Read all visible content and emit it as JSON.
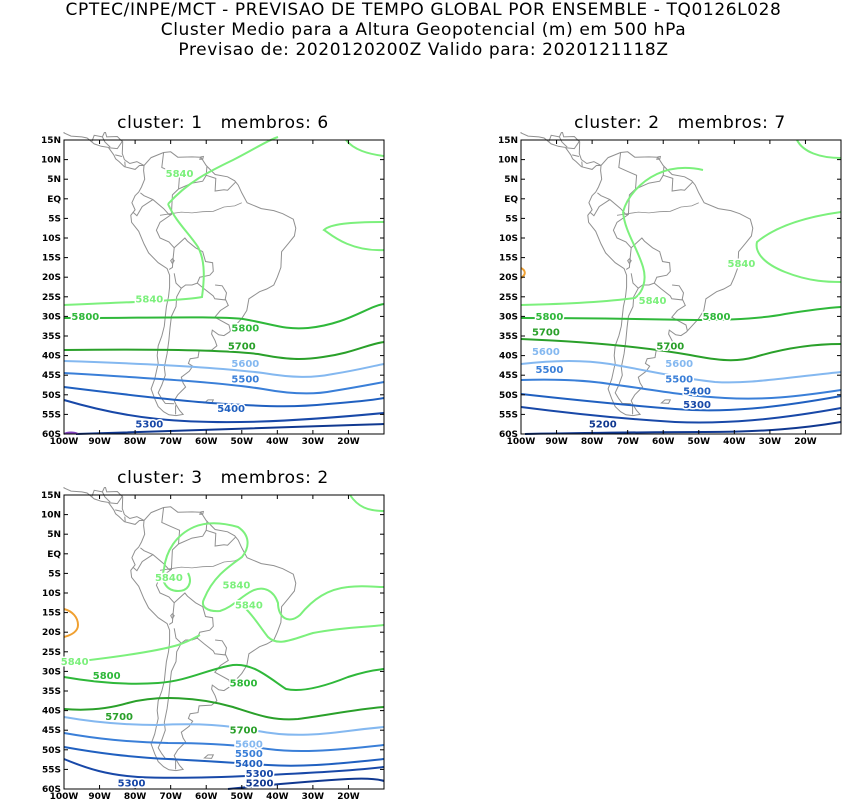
{
  "header": {
    "line1": "CPTEC/INPE/MCT - PREVISAO DE TEMPO GLOBAL POR ENSEMBLE - TQ0126L028",
    "line2": "Cluster Medio para a Altura Geopotencial (m) em 500 hPa",
    "line3": "Previsao de: 2020120200Z    Valido para: 2020121118Z"
  },
  "axes": {
    "lat_labels": [
      "15N",
      "10N",
      "5N",
      "EQ",
      "5S",
      "10S",
      "15S",
      "20S",
      "25S",
      "30S",
      "35S",
      "40S",
      "45S",
      "50S",
      "55S",
      "60S"
    ],
    "lon_labels": [
      "100W",
      "90W",
      "80W",
      "70W",
      "60W",
      "50W",
      "40W",
      "30W",
      "20W"
    ]
  },
  "colors": {
    "c5840": "#7cf07c",
    "c5800": "#2fb83a",
    "c5700": "#2aa02a",
    "c5600": "#84b8f0",
    "c5500": "#3a7fd8",
    "c5400": "#2060c0",
    "c5300": "#1848a8",
    "c5200": "#103890",
    "c5880": "#f0a030",
    "coast": "#909090"
  },
  "panels": [
    {
      "title": "cluster: 1   membros: 6",
      "labels": [
        {
          "text": "5840",
          "lon": -67.5,
          "lat": 6.5,
          "level": "c5840"
        },
        {
          "text": "5840",
          "lon": -76.0,
          "lat": -25.5,
          "level": "c5840"
        },
        {
          "text": "5800",
          "lon": -94.0,
          "lat": -30.0,
          "level": "c5800"
        },
        {
          "text": "5800",
          "lon": -49.0,
          "lat": -33.0,
          "level": "c5800"
        },
        {
          "text": "5700",
          "lon": -50.0,
          "lat": -37.5,
          "level": "c5700"
        },
        {
          "text": "5600",
          "lon": -49.0,
          "lat": -42.0,
          "level": "c5600"
        },
        {
          "text": "5500",
          "lon": -49.0,
          "lat": -46.0,
          "level": "c5500"
        },
        {
          "text": "5400",
          "lon": -53.0,
          "lat": -53.5,
          "level": "c5400"
        },
        {
          "text": "5300",
          "lon": -76.0,
          "lat": -57.5,
          "level": "c5300"
        }
      ]
    },
    {
      "title": "cluster: 2   membros: 7",
      "labels": [
        {
          "text": "5840",
          "lon": -38.0,
          "lat": -16.5,
          "level": "c5840"
        },
        {
          "text": "5840",
          "lon": -63.0,
          "lat": -26.0,
          "level": "c5840"
        },
        {
          "text": "5800",
          "lon": -92.0,
          "lat": -30.0,
          "level": "c5800"
        },
        {
          "text": "5800",
          "lon": -45.0,
          "lat": -30.0,
          "level": "c5800"
        },
        {
          "text": "5700",
          "lon": -93.0,
          "lat": -34.0,
          "level": "c5700"
        },
        {
          "text": "5700",
          "lon": -58.0,
          "lat": -37.5,
          "level": "c5700"
        },
        {
          "text": "5600",
          "lon": -93.0,
          "lat": -39.0,
          "level": "c5600"
        },
        {
          "text": "5600",
          "lon": -55.5,
          "lat": -42.0,
          "level": "c5600"
        },
        {
          "text": "5500",
          "lon": -92.0,
          "lat": -43.5,
          "level": "c5500"
        },
        {
          "text": "5500",
          "lon": -55.5,
          "lat": -46.0,
          "level": "c5500"
        },
        {
          "text": "5400",
          "lon": -50.5,
          "lat": -49.0,
          "level": "c5400"
        },
        {
          "text": "5300",
          "lon": -50.5,
          "lat": -52.5,
          "level": "c5300"
        },
        {
          "text": "5200",
          "lon": -77.0,
          "lat": -57.5,
          "level": "c5200"
        }
      ]
    },
    {
      "title": "cluster: 3   membros: 2",
      "labels": [
        {
          "text": "5840",
          "lon": -70.5,
          "lat": -6.0,
          "level": "c5840"
        },
        {
          "text": "5840",
          "lon": -51.5,
          "lat": -8.0,
          "level": "c5840"
        },
        {
          "text": "5840",
          "lon": -48.0,
          "lat": -13.0,
          "level": "c5840"
        },
        {
          "text": "5840",
          "lon": -97.0,
          "lat": -27.5,
          "level": "c5840"
        },
        {
          "text": "5800",
          "lon": -88.0,
          "lat": -31.0,
          "level": "c5800"
        },
        {
          "text": "5800",
          "lon": -49.5,
          "lat": -33.0,
          "level": "c5800"
        },
        {
          "text": "5700",
          "lon": -84.5,
          "lat": -41.5,
          "level": "c5700"
        },
        {
          "text": "5700",
          "lon": -49.5,
          "lat": -45.0,
          "level": "c5700"
        },
        {
          "text": "5600",
          "lon": -48.0,
          "lat": -48.5,
          "level": "c5600"
        },
        {
          "text": "5500",
          "lon": -48.0,
          "lat": -51.0,
          "level": "c5500"
        },
        {
          "text": "5400",
          "lon": -48.0,
          "lat": -53.5,
          "level": "c5400"
        },
        {
          "text": "5300",
          "lon": -45.0,
          "lat": -56.0,
          "level": "c5300"
        },
        {
          "text": "5300",
          "lon": -81.0,
          "lat": -58.5,
          "level": "c5300"
        },
        {
          "text": "5200",
          "lon": -45.0,
          "lat": -58.5,
          "level": "c5200"
        }
      ]
    }
  ]
}
